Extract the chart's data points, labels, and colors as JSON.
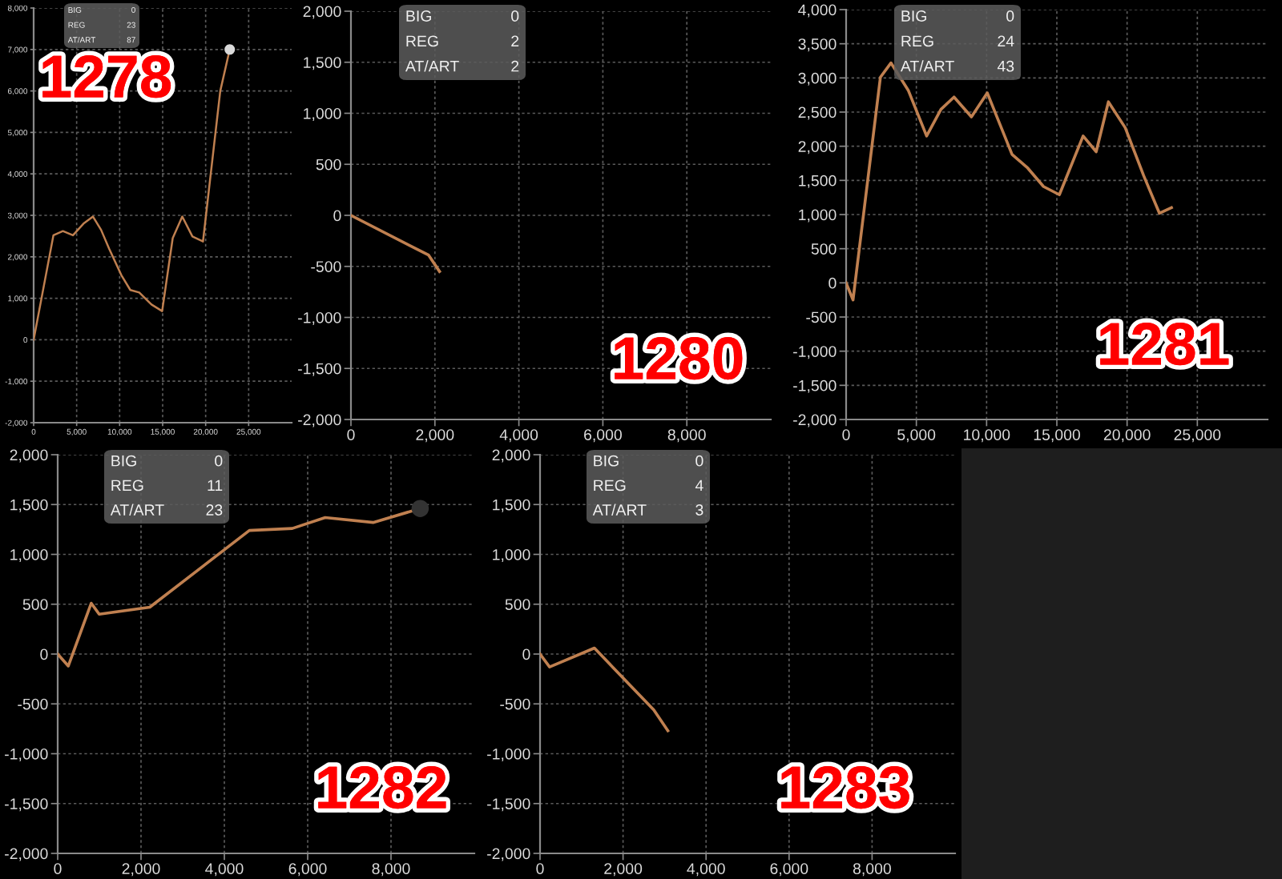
{
  "chart_data": [
    {
      "type": "line",
      "title": "1278",
      "x": [
        0,
        2300,
        3400,
        4570,
        5800,
        6900,
        7840,
        8770,
        10190,
        11240,
        12280,
        13700,
        14940,
        16170,
        17280,
        18460,
        19690,
        21700,
        22800
      ],
      "series": [
        {
          "color": "#c08050",
          "values": [
            0,
            2520,
            2620,
            2520,
            2800,
            2970,
            2650,
            2200,
            1560,
            1200,
            1140,
            850,
            690,
            2450,
            2970,
            2490,
            2370,
            6000,
            7000
          ]
        },
        {
          "type": "scatter",
          "x": [
            22800
          ],
          "values": [
            7000
          ],
          "color": "#d9d9d9",
          "marker": "circle"
        }
      ],
      "xlim": [
        0,
        30000
      ],
      "ylim": [
        -2000,
        8000
      ],
      "xticks": [
        0,
        {
          "value": 5000,
          "label": "5,000"
        },
        {
          "value": 10000,
          "label": "10,000"
        },
        {
          "value": 15000,
          "label": "15,000"
        },
        {
          "value": 20000,
          "label": "20,000"
        },
        {
          "value": 25000,
          "label": "25,000"
        }
      ],
      "yticks": [
        {
          "value": -2000,
          "label": "-2,000"
        },
        {
          "value": -1000,
          "label": "-1,000"
        },
        0,
        {
          "value": 1000,
          "label": "1,000"
        },
        {
          "value": 2000,
          "label": "2,000"
        },
        {
          "value": 3000,
          "label": "3,000"
        },
        {
          "value": 4000,
          "label": "4,000"
        },
        {
          "value": 5000,
          "label": "5,000"
        },
        {
          "value": 6000,
          "label": "6,000"
        },
        {
          "value": 7000,
          "label": "7,000"
        },
        {
          "value": 8000,
          "label": "8,000"
        }
      ],
      "grid": true,
      "line_style": "solid",
      "annotations": [
        "BIG",
        "0",
        "REG",
        "23",
        "AT/ART",
        "87"
      ]
    },
    {
      "type": "line",
      "title": "1280",
      "x": [
        0,
        1850,
        2110
      ],
      "series": [
        {
          "color": "#c08050",
          "values": [
            0,
            -390,
            -550
          ]
        }
      ],
      "xlim": [
        0,
        10000
      ],
      "ylim": [
        -2000,
        2000
      ],
      "xticks": [
        0,
        {
          "value": 2000,
          "label": "2,000"
        },
        {
          "value": 4000,
          "label": "4,000"
        },
        {
          "value": 6000,
          "label": "6,000"
        },
        {
          "value": 8000,
          "label": "8,000"
        }
      ],
      "yticks": [
        {
          "value": -2000,
          "label": "-2,000"
        },
        {
          "value": -1500,
          "label": "-1,500"
        },
        {
          "value": -1000,
          "label": "-1,000"
        },
        -500,
        0,
        500,
        {
          "value": 1000,
          "label": "1,000"
        },
        {
          "value": 1500,
          "label": "1,500"
        },
        {
          "value": 2000,
          "label": "2,000"
        }
      ],
      "grid": true,
      "line_style": "solid",
      "annotations": [
        "BIG",
        "0",
        "REG",
        "2",
        "AT/ART",
        "2"
      ]
    },
    {
      "type": "line",
      "title": "1281",
      "x": [
        0,
        490,
        2440,
        3190,
        4420,
        5730,
        6750,
        7680,
        8920,
        10050,
        11810,
        12930,
        14050,
        15180,
        16870,
        17800,
        18670,
        19870,
        21180,
        22300,
        23160
      ],
      "series": [
        {
          "color": "#c08050",
          "values": [
            0,
            -250,
            3010,
            3220,
            2820,
            2150,
            2540,
            2720,
            2430,
            2780,
            1880,
            1680,
            1410,
            1290,
            2150,
            1920,
            2650,
            2270,
            1570,
            1020,
            1100
          ]
        }
      ],
      "xlim": [
        0,
        30000
      ],
      "ylim": [
        -2000,
        4000
      ],
      "xticks": [
        0,
        {
          "value": 5000,
          "label": "5,000"
        },
        {
          "value": 10000,
          "label": "10,000"
        },
        {
          "value": 15000,
          "label": "15,000"
        },
        {
          "value": 20000,
          "label": "20,000"
        },
        {
          "value": 25000,
          "label": "25,000"
        }
      ],
      "yticks": [
        {
          "value": -2000,
          "label": "-2,000"
        },
        {
          "value": -1500,
          "label": "-1,500"
        },
        {
          "value": -1000,
          "label": "-1,000"
        },
        -500,
        0,
        500,
        {
          "value": 1000,
          "label": "1,000"
        },
        {
          "value": 1500,
          "label": "1,500"
        },
        {
          "value": 2000,
          "label": "2,000"
        },
        {
          "value": 2500,
          "label": "2,500"
        },
        {
          "value": 3000,
          "label": "3,000"
        },
        {
          "value": 3500,
          "label": "3,500"
        },
        {
          "value": 4000,
          "label": "4,000"
        }
      ],
      "grid": true,
      "line_style": "solid",
      "annotations": [
        "BIG",
        "0",
        "REG",
        "24",
        "AT/ART",
        "43"
      ]
    },
    {
      "type": "line",
      "title": "1282",
      "x": [
        0,
        255,
        805,
        996,
        2210,
        4600,
        5630,
        6420,
        7570,
        8700
      ],
      "series": [
        {
          "color": "#c08050",
          "values": [
            0,
            -120,
            510,
            400,
            470,
            1240,
            1260,
            1370,
            1320,
            1460
          ]
        },
        {
          "type": "scatter",
          "x": [
            8700
          ],
          "values": [
            1460
          ],
          "color": "#333333",
          "marker": "circle"
        }
      ],
      "xlim": [
        0,
        10000
      ],
      "ylim": [
        -2000,
        2000
      ],
      "xticks": [
        0,
        {
          "value": 2000,
          "label": "2,000"
        },
        {
          "value": 4000,
          "label": "4,000"
        },
        {
          "value": 6000,
          "label": "6,000"
        },
        {
          "value": 8000,
          "label": "8,000"
        }
      ],
      "yticks": [
        {
          "value": -2000,
          "label": "-2,000"
        },
        {
          "value": -1500,
          "label": "-1,500"
        },
        {
          "value": -1000,
          "label": "-1,000"
        },
        -500,
        0,
        500,
        {
          "value": 1000,
          "label": "1,000"
        },
        {
          "value": 1500,
          "label": "1,500"
        },
        {
          "value": 2000,
          "label": "2,000"
        }
      ],
      "grid": true,
      "line_style": "solid",
      "annotations": [
        "BIG",
        "0",
        "REG",
        "11",
        "AT/ART",
        "23"
      ]
    },
    {
      "type": "line",
      "title": "1283",
      "x": [
        0,
        230,
        1310,
        2740,
        3080
      ],
      "series": [
        {
          "color": "#c08050",
          "values": [
            0,
            -130,
            60,
            -560,
            -770
          ]
        }
      ],
      "xlim": [
        0,
        10000
      ],
      "ylim": [
        -2000,
        2000
      ],
      "xticks": [
        0,
        {
          "value": 2000,
          "label": "2,000"
        },
        {
          "value": 4000,
          "label": "4,000"
        },
        {
          "value": 6000,
          "label": "6,000"
        },
        {
          "value": 8000,
          "label": "8,000"
        }
      ],
      "yticks": [
        {
          "value": -2000,
          "label": "-2,000"
        },
        {
          "value": -1500,
          "label": "-1,500"
        },
        {
          "value": -1000,
          "label": "-1,000"
        },
        -500,
        0,
        500,
        {
          "value": 1000,
          "label": "1,000"
        },
        {
          "value": 1500,
          "label": "1,500"
        },
        {
          "value": 2000,
          "label": "2,000"
        }
      ],
      "grid": true,
      "line_style": "solid",
      "annotations": [
        "BIG",
        "0",
        "REG",
        "4",
        "AT/ART",
        "3"
      ]
    }
  ]
}
